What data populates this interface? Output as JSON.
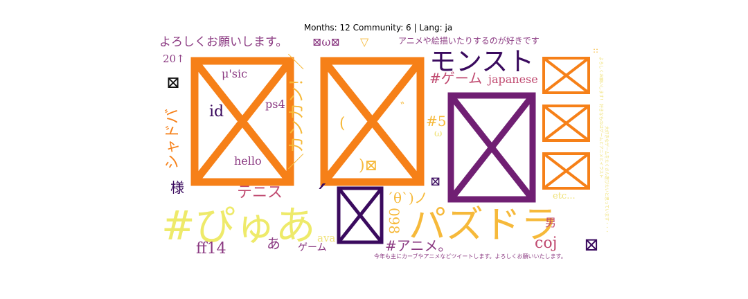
{
  "title": "Months: 12 Community: 6 | Lang: ja",
  "colors": {
    "orange": "#f68018",
    "purple": "#701f73",
    "dark_purple": "#3a0a5e",
    "plum": "#8b3a82",
    "pink": "#c04a70",
    "rose": "#a2326a",
    "gold": "#f6b93a",
    "yellow": "#eeea6a",
    "pale_yellow": "#f0e27a",
    "black": "#111111"
  },
  "missing_glyph": "⊠",
  "words": {
    "greeting": "よろしくお願いします。",
    "num_20": "20↑",
    "omega": "ω",
    "triangle": "▽",
    "anime_draw": "アニメや絵描いたりするのが好きです",
    "monst": "モンスト",
    "game_tag": "#ゲーム",
    "japanese": "japanese",
    "music": "μ'sic",
    "id": "id",
    "ps4": "ps4",
    "hello": "hello",
    "kankan": "＼カンカン！／",
    "shadowverse": "シャドバ",
    "paren_open": "(",
    "paren_close": ")",
    "quote": "゛",
    "tag_5": "#5",
    "omega_small": "ω",
    "sama": "様",
    "tennis": "テニス",
    "puyoa": "#ぴゅあ",
    "accent": "´",
    "theta": "´θ`)ノ",
    "num_098": "098",
    "padodra": "パズドラ",
    "etc": "etc...",
    "otoko": "男",
    "coj": "coj",
    "anime_tag": "#アニメ。",
    "ff14": "ff14",
    "a": "あ",
    "game": "ゲーム",
    "ava": "ava",
    "footer_line": "今年も主にカーブやアニメなどツイートします。よろしくお願いいたします。",
    "colon": "::",
    "vertical_small": "よろしくお願いします！ 好きなものはゲームとアニメとイラスト",
    "vertical_small2": "大好きなゲームをたくさん遊びたいと思っています・・・"
  },
  "boxes": [
    {
      "color": "orange"
    },
    {
      "color": "orange"
    },
    {
      "color": "purple"
    },
    {
      "color": "dark_purple"
    },
    {
      "color": "orange"
    },
    {
      "color": "orange"
    },
    {
      "color": "orange"
    }
  ]
}
